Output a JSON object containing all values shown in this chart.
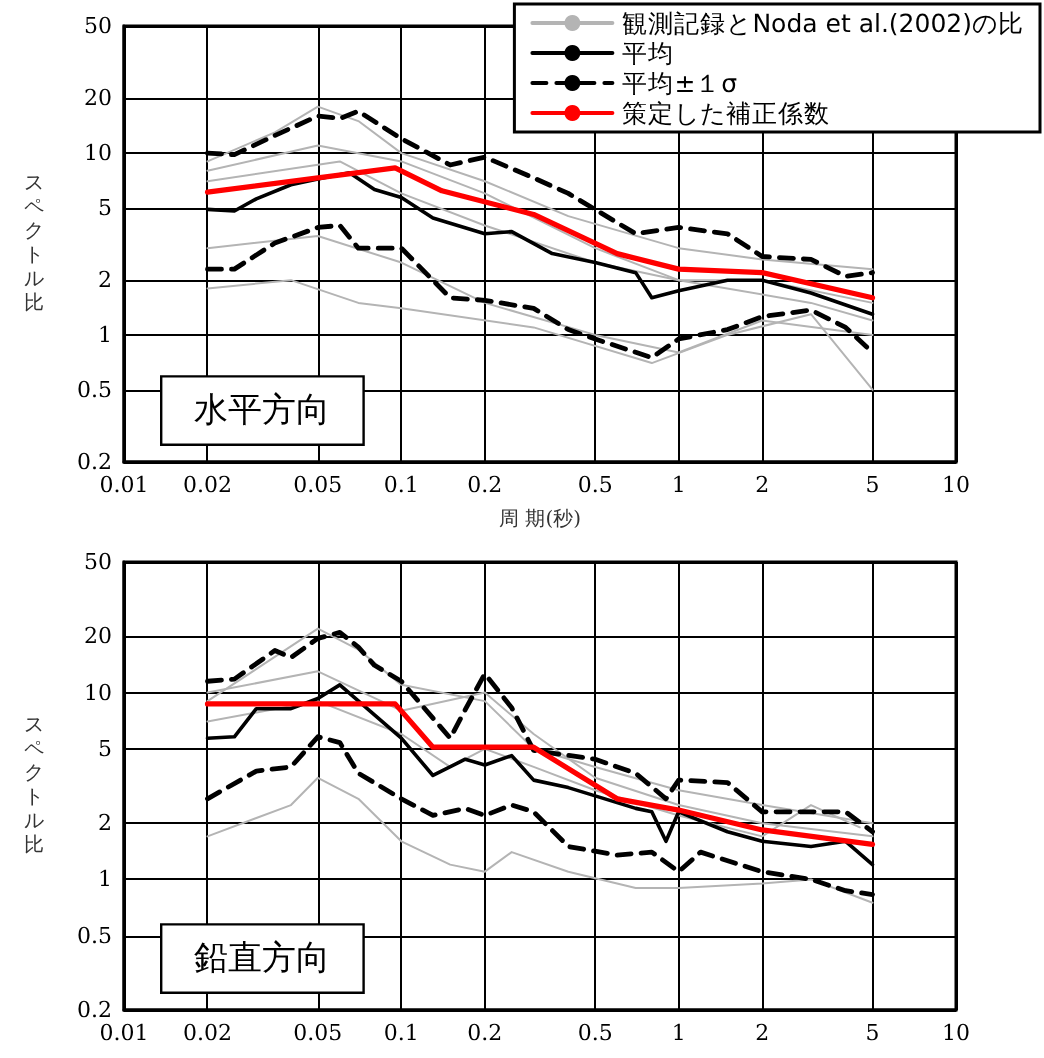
{
  "chart_data": [
    {
      "type": "line",
      "xlabel": "周 期(秒)",
      "ylabel": "スペクトル比",
      "annotations": [
        "水平方向"
      ],
      "log": "xy",
      "grid": true,
      "legend": "top right",
      "marker": "none",
      "xlim": [
        0.01,
        10
      ],
      "xticks": [
        0.01,
        0.02,
        0.05,
        0.1,
        0.2,
        0.5,
        1,
        2,
        5,
        10
      ],
      "ylim": [
        0.2,
        50
      ],
      "yticks": [
        0.2,
        0.5,
        1,
        2,
        5,
        10,
        20,
        50
      ],
      "series": [
        {
          "name": "観測記録とNoda et al.(2002)の比",
          "color": "#b4b4b4",
          "x": [
            0.02,
            0.035,
            0.05,
            0.07,
            0.1,
            0.2,
            0.4,
            1,
            2,
            5
          ],
          "values": [
            9,
            13,
            18,
            15,
            10,
            7,
            4.5,
            3,
            2.6,
            2.3
          ]
        },
        {
          "color": "#b4b4b4",
          "x": [
            0.02,
            0.05,
            0.1,
            0.2,
            0.5,
            1,
            2,
            5
          ],
          "values": [
            8,
            11,
            9,
            6,
            3,
            2,
            2,
            1.5
          ]
        },
        {
          "color": "#b4b4b4",
          "x": [
            0.02,
            0.05,
            0.1,
            0.2,
            0.5,
            1,
            2,
            5
          ],
          "values": [
            3,
            3.5,
            2.5,
            1.5,
            1,
            0.8,
            1.2,
            1
          ]
        },
        {
          "color": "#b4b4b4",
          "x": [
            0.02,
            0.04,
            0.07,
            0.1,
            0.3,
            0.8,
            1.5,
            3,
            5
          ],
          "values": [
            1.8,
            2,
            1.5,
            1.4,
            1.1,
            0.7,
            1,
            1.3,
            0.5
          ]
        },
        {
          "color": "#b4b4b4",
          "x": [
            0.02,
            0.06,
            0.1,
            0.2,
            0.5,
            1,
            3,
            5
          ],
          "values": [
            7,
            9,
            6,
            4,
            2.5,
            2,
            1.5,
            1.2
          ]
        },
        {
          "name": "平均",
          "color": "#000000",
          "x": [
            0.02,
            0.025,
            0.03,
            0.04,
            0.05,
            0.065,
            0.08,
            0.1,
            0.13,
            0.2,
            0.25,
            0.35,
            0.5,
            0.7,
            0.8,
            1,
            1.5,
            2,
            3,
            5
          ],
          "values": [
            4.9,
            4.8,
            5.6,
            6.7,
            7.2,
            7.8,
            6.3,
            5.7,
            4.4,
            3.6,
            3.7,
            2.8,
            2.5,
            2.2,
            1.6,
            1.75,
            2,
            2,
            1.7,
            1.3
          ]
        },
        {
          "name": "平均±１σ",
          "color": "#000000",
          "line_style": "dashed",
          "x": [
            0.02,
            0.025,
            0.035,
            0.05,
            0.06,
            0.07,
            0.1,
            0.15,
            0.2,
            0.3,
            0.4,
            0.7,
            1,
            1.5,
            2,
            3,
            4,
            5
          ],
          "values": [
            10,
            9.8,
            12.5,
            16,
            15.5,
            17,
            12,
            8.6,
            9.5,
            7.3,
            6,
            3.6,
            3.9,
            3.6,
            2.7,
            2.6,
            2.1,
            2.2
          ]
        },
        {
          "color": "#000000",
          "line_style": "dashed",
          "x": [
            0.02,
            0.025,
            0.035,
            0.05,
            0.06,
            0.07,
            0.1,
            0.15,
            0.2,
            0.3,
            0.4,
            0.5,
            0.8,
            1,
            1.5,
            2,
            3,
            4,
            5
          ],
          "values": [
            2.3,
            2.3,
            3.2,
            3.9,
            4,
            3,
            3,
            1.6,
            1.55,
            1.4,
            1.07,
            0.95,
            0.75,
            0.95,
            1.07,
            1.26,
            1.37,
            1.1,
            0.8
          ]
        },
        {
          "name": "策定した補正係数",
          "color": "#ff0000",
          "x": [
            0.02,
            0.095,
            0.14,
            0.3,
            0.6,
            1,
            2,
            5
          ],
          "values": [
            6.1,
            8.3,
            6.2,
            4.6,
            2.8,
            2.3,
            2.2,
            1.6
          ]
        }
      ]
    },
    {
      "type": "line",
      "ylabel": "スペクトル比",
      "annotations": [
        "鉛直方向"
      ],
      "log": "xy",
      "grid": true,
      "legend": false,
      "marker": "none",
      "xlim": [
        0.01,
        10
      ],
      "xticks": [
        0.01,
        0.02,
        0.05,
        0.1,
        0.2,
        0.5,
        1,
        2,
        5,
        10
      ],
      "ylim": [
        0.2,
        50
      ],
      "yticks": [
        0.2,
        0.5,
        1,
        2,
        5,
        10,
        20,
        50
      ],
      "series": [
        {
          "color": "#b4b4b4",
          "x": [
            0.02,
            0.05,
            0.07,
            0.1,
            0.2,
            0.3,
            0.5,
            1,
            2,
            5
          ],
          "values": [
            9,
            22,
            17,
            11,
            9,
            5,
            4,
            3,
            2.5,
            2
          ]
        },
        {
          "color": "#b4b4b4",
          "x": [
            0.02,
            0.04,
            0.05,
            0.07,
            0.1,
            0.15,
            0.2,
            0.25,
            0.4,
            0.7,
            1,
            2,
            3,
            5
          ],
          "values": [
            1.7,
            2.5,
            3.5,
            2.7,
            1.6,
            1.2,
            1.1,
            1.4,
            1.1,
            0.9,
            0.9,
            0.95,
            1,
            0.75
          ]
        },
        {
          "color": "#b4b4b4",
          "x": [
            0.02,
            0.05,
            0.1,
            0.15,
            0.2,
            0.3,
            0.5,
            1,
            2,
            3,
            4.5
          ],
          "values": [
            7,
            9,
            6,
            4,
            5,
            4,
            3,
            2.2,
            1.7,
            2.5,
            1.9
          ]
        },
        {
          "color": "#b4b4b4",
          "x": [
            0.02,
            0.05,
            0.1,
            0.2,
            0.3,
            0.5,
            1,
            2,
            5
          ],
          "values": [
            10,
            13,
            8,
            10,
            6,
            3.5,
            2.5,
            2,
            1.7
          ]
        },
        {
          "color": "#000000",
          "x": [
            0.02,
            0.025,
            0.03,
            0.04,
            0.05,
            0.06,
            0.08,
            0.1,
            0.13,
            0.17,
            0.2,
            0.25,
            0.3,
            0.4,
            0.5,
            0.7,
            0.8,
            0.9,
            1,
            1.5,
            2,
            3,
            4,
            5
          ],
          "values": [
            5.7,
            5.8,
            8.2,
            8.2,
            9.3,
            11,
            7.6,
            5.7,
            3.6,
            4.4,
            4.1,
            4.6,
            3.4,
            3.1,
            2.8,
            2.4,
            2.3,
            1.6,
            2.3,
            1.8,
            1.6,
            1.5,
            1.6,
            1.2
          ]
        },
        {
          "color": "#000000",
          "line_style": "dashed",
          "x": [
            0.02,
            0.025,
            0.035,
            0.04,
            0.05,
            0.06,
            0.07,
            0.08,
            0.1,
            0.13,
            0.15,
            0.17,
            0.2,
            0.25,
            0.3,
            0.5,
            0.7,
            0.9,
            1,
            1.5,
            2,
            3,
            4,
            5
          ],
          "values": [
            11.5,
            11.8,
            16.8,
            15.4,
            19.5,
            21,
            17.5,
            14,
            11.5,
            7.3,
            5.7,
            8.1,
            12.6,
            8.3,
            4.9,
            4.4,
            3.7,
            2.7,
            3.4,
            3.3,
            2.3,
            2.3,
            2.3,
            1.8
          ]
        },
        {
          "color": "#000000",
          "line_style": "dashed",
          "x": [
            0.02,
            0.03,
            0.04,
            0.05,
            0.06,
            0.07,
            0.1,
            0.13,
            0.17,
            0.2,
            0.25,
            0.3,
            0.4,
            0.6,
            0.8,
            1,
            1.2,
            2,
            3,
            4,
            5
          ],
          "values": [
            2.7,
            3.8,
            4,
            5.8,
            5.4,
            3.7,
            2.7,
            2.2,
            2.4,
            2.2,
            2.5,
            2.3,
            1.5,
            1.35,
            1.4,
            1.1,
            1.4,
            1.1,
            1,
            0.87,
            0.83
          ]
        },
        {
          "color": "#ff0000",
          "x": [
            0.02,
            0.095,
            0.13,
            0.3,
            0.6,
            1,
            2,
            5
          ],
          "values": [
            8.7,
            8.7,
            5.1,
            5.1,
            2.7,
            2.35,
            1.84,
            1.54
          ]
        }
      ]
    }
  ]
}
